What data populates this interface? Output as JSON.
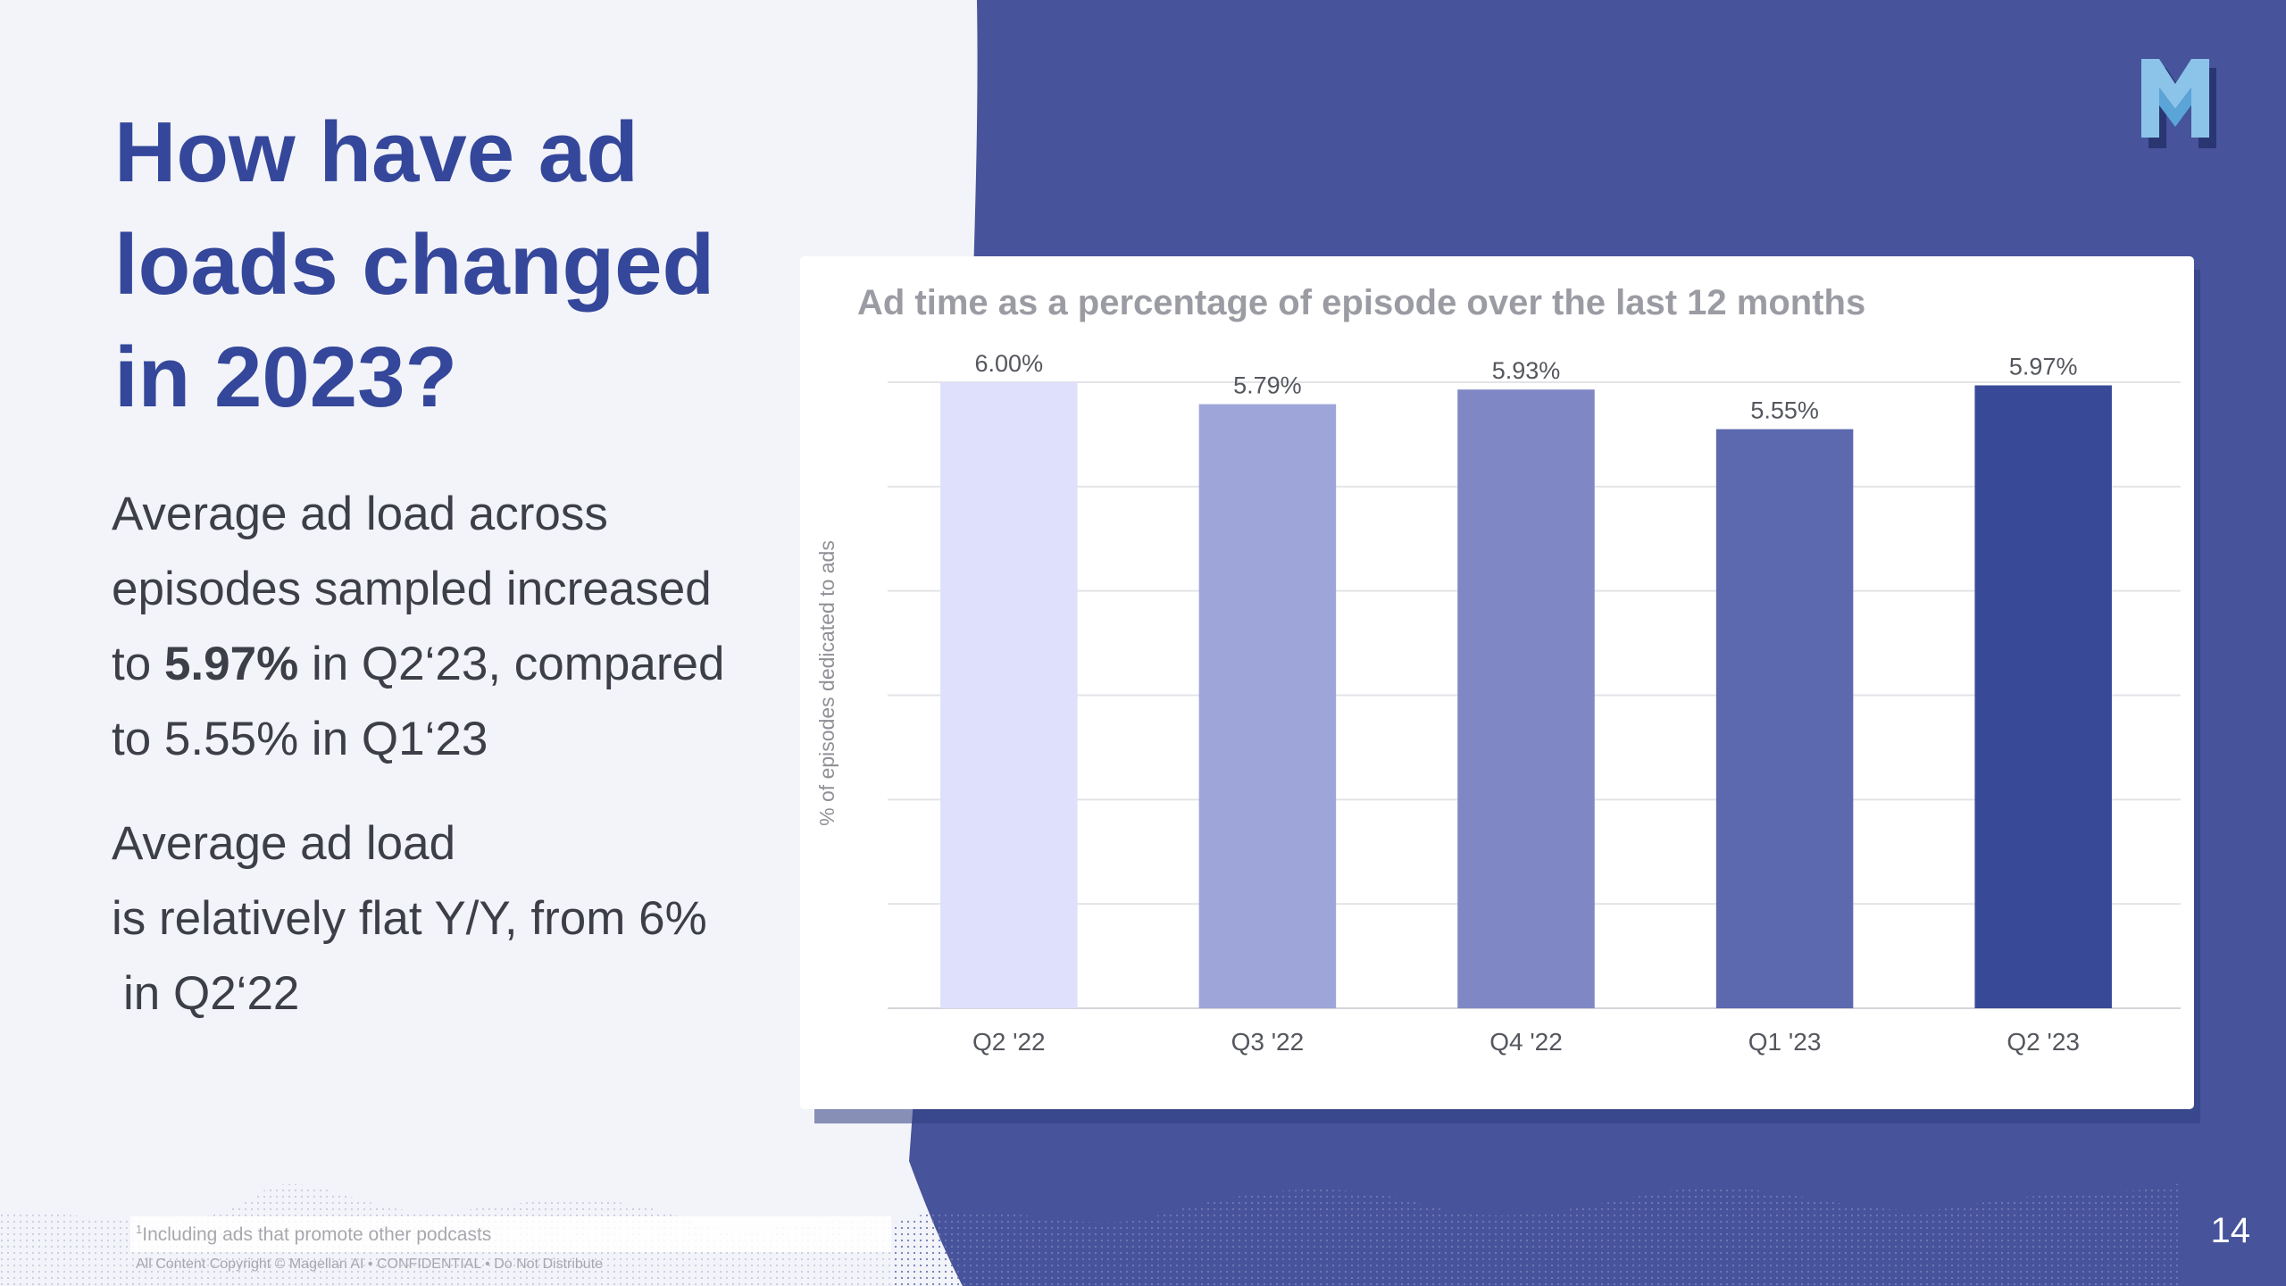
{
  "slide": {
    "title": "How have ad loads changed in 2023?",
    "para1": {
      "before": "Average ad load across episodes sampled increased to ",
      "highlight": "5.97%",
      "after": " in Q2‘23, compared to 5.55% in Q1‘23"
    },
    "para2": {
      "line1": "Average ad load",
      "line2": "is relatively flat Y/Y, from 6%",
      "line3": "in Q2‘22"
    },
    "footnote_marker": "1",
    "footnote": "Including ads that promote other podcasts",
    "copyright": "All Content Copyright © Magellan AI  •  CONFIDENTIAL  •  Do Not Distribute",
    "page_number": "14",
    "logo": "magellan-m-logo",
    "colors": {
      "background": "#f3f4f9",
      "panel": "#47549b",
      "title": "#34479a"
    }
  },
  "chart_data": {
    "type": "bar",
    "title": "Ad time as a percentage of episode over the last 12 months",
    "ylabel": "% of episodes dedicated to ads",
    "xlabel": "",
    "categories": [
      "Q2 '22",
      "Q3 '22",
      "Q4 '22",
      "Q1 '23",
      "Q2 '23"
    ],
    "values": [
      6.0,
      5.79,
      5.93,
      5.55,
      5.97
    ],
    "labels": [
      "6.00%",
      "5.79%",
      "5.93%",
      "5.55%",
      "5.97%"
    ],
    "bar_colors": [
      "#dfe0fb",
      "#9ea5d9",
      "#7f88c5",
      "#5c69af",
      "#384a97"
    ],
    "ylim": [
      0,
      6
    ],
    "gridlines": 6,
    "grid": true,
    "legend": "none"
  }
}
